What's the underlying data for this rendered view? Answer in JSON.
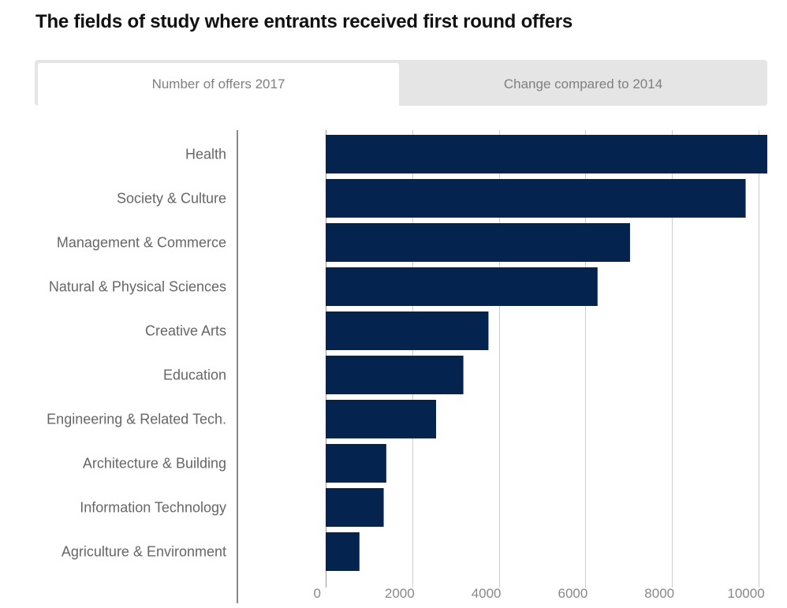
{
  "title": "The fields of study where entrants received first round offers",
  "tabs": [
    {
      "label": "Number of offers 2017",
      "active": true
    },
    {
      "label": "Change compared to 2014",
      "active": false
    }
  ],
  "colors": {
    "bar": "#04234f",
    "grid": "#cccccc",
    "axis": "#888888"
  },
  "chart_data": {
    "type": "bar",
    "orientation": "horizontal",
    "title": "The fields of study where entrants received first round offers",
    "xlabel": "",
    "ylabel": "",
    "xlim": [
      0,
      10200
    ],
    "ticks": [
      0,
      2000,
      4000,
      6000,
      8000,
      10000
    ],
    "tick_labels": [
      "0",
      "2000",
      "4000",
      "6000",
      "8000",
      "10000"
    ],
    "grid": true,
    "categories": [
      "Health",
      "Society & Culture",
      "Management & Commerce",
      "Natural & Physical Sciences",
      "Creative Arts",
      "Education",
      "Engineering & Related Tech.",
      "Architecture & Building",
      "Information Technology",
      "Agriculture & Environment"
    ],
    "values": [
      10200,
      9700,
      7030,
      6280,
      3760,
      3180,
      2550,
      1400,
      1340,
      780
    ]
  }
}
